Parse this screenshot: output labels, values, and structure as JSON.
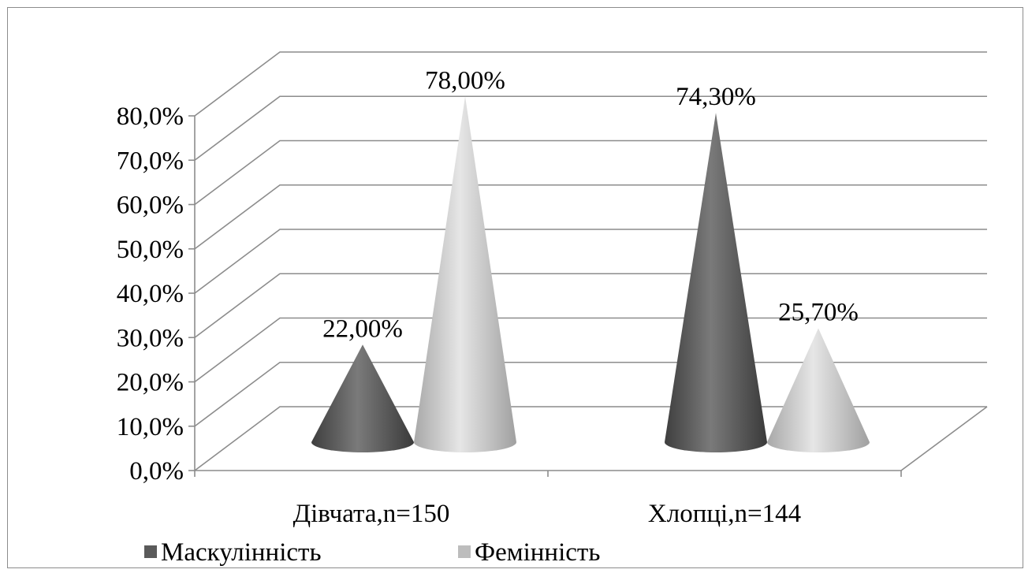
{
  "chart_data": {
    "type": "bar",
    "style": "3d-cone",
    "categories": [
      "Дівчата,n=150",
      "Хлопці,n=144"
    ],
    "series": [
      {
        "name": "Маскулінність",
        "values": [
          22.0,
          74.3
        ],
        "labels": [
          "22,00%",
          "74,30%"
        ],
        "color": "#5a5a5a"
      },
      {
        "name": "Фемінність",
        "values": [
          78.0,
          25.7
        ],
        "labels": [
          "78,00%",
          "25,70%"
        ],
        "color": "#bdbdbd"
      }
    ],
    "y_ticks": [
      "0,0%",
      "10,0%",
      "20,0%",
      "30,0%",
      "40,0%",
      "50,0%",
      "60,0%",
      "70,0%",
      "80,0%"
    ],
    "ylim": [
      0,
      80
    ],
    "grid": true,
    "legend_position": "bottom",
    "title": "",
    "xlabel": "",
    "ylabel": ""
  }
}
